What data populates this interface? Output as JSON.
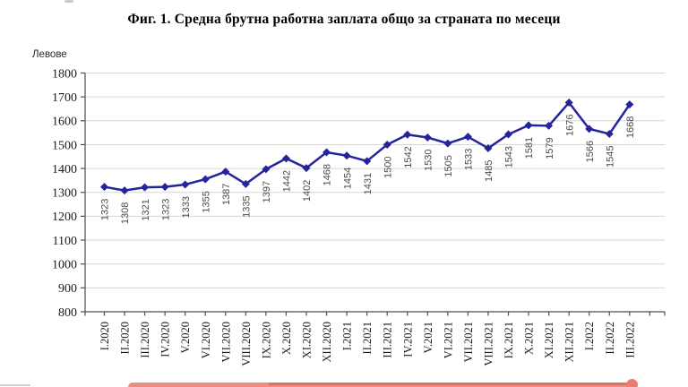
{
  "chart": {
    "title": "Фиг. 1. Средна брутна работна заплата общо за страната по месеци",
    "unit_label": "Левове"
  },
  "chart_data": {
    "type": "line",
    "title": "Фиг. 1. Средна брутна работна заплата общо за страната по месеци",
    "xlabel": "",
    "ylabel": "Левове",
    "categories": [
      "I.2020",
      "II.2020",
      "III.2020",
      "IV.2020",
      "V.2020",
      "VI.2020",
      "VII.2020",
      "VIII.2020",
      "IX.2020",
      "X.2020",
      "XI.2020",
      "XII.2020",
      "I.2021",
      "II.2021",
      "III.2021",
      "IV.2021",
      "V.2021",
      "VI.2021",
      "VII.2021",
      "VIII.2021",
      "IX.2021",
      "X.2021",
      "XI.2021",
      "XII.2021",
      "I.2022",
      "II.2022",
      "III.2022"
    ],
    "values": [
      1323,
      1308,
      1321,
      1323,
      1333,
      1355,
      1387,
      1335,
      1397,
      1442,
      1402,
      1468,
      1454,
      1431,
      1500,
      1542,
      1530,
      1505,
      1533,
      1485,
      1543,
      1581,
      1579,
      1676,
      1566,
      1545,
      1668
    ],
    "ylim": [
      800,
      1800
    ],
    "ytick_step": 100,
    "grid": true,
    "legend_position": "none",
    "marker": "diamond",
    "data_labels": true,
    "series_color": "#24249C",
    "data_label_color": "#4a4a4a",
    "grid_color": "#d6d6d6",
    "axis_color": "#4d4d4d",
    "tick_label_color": "#1a1a1a"
  },
  "annotation": {
    "description": "red highlight underline, partially cut off at bottom edge",
    "bar_color": "#ee8d82",
    "dot_color": "#ec7b6f"
  }
}
